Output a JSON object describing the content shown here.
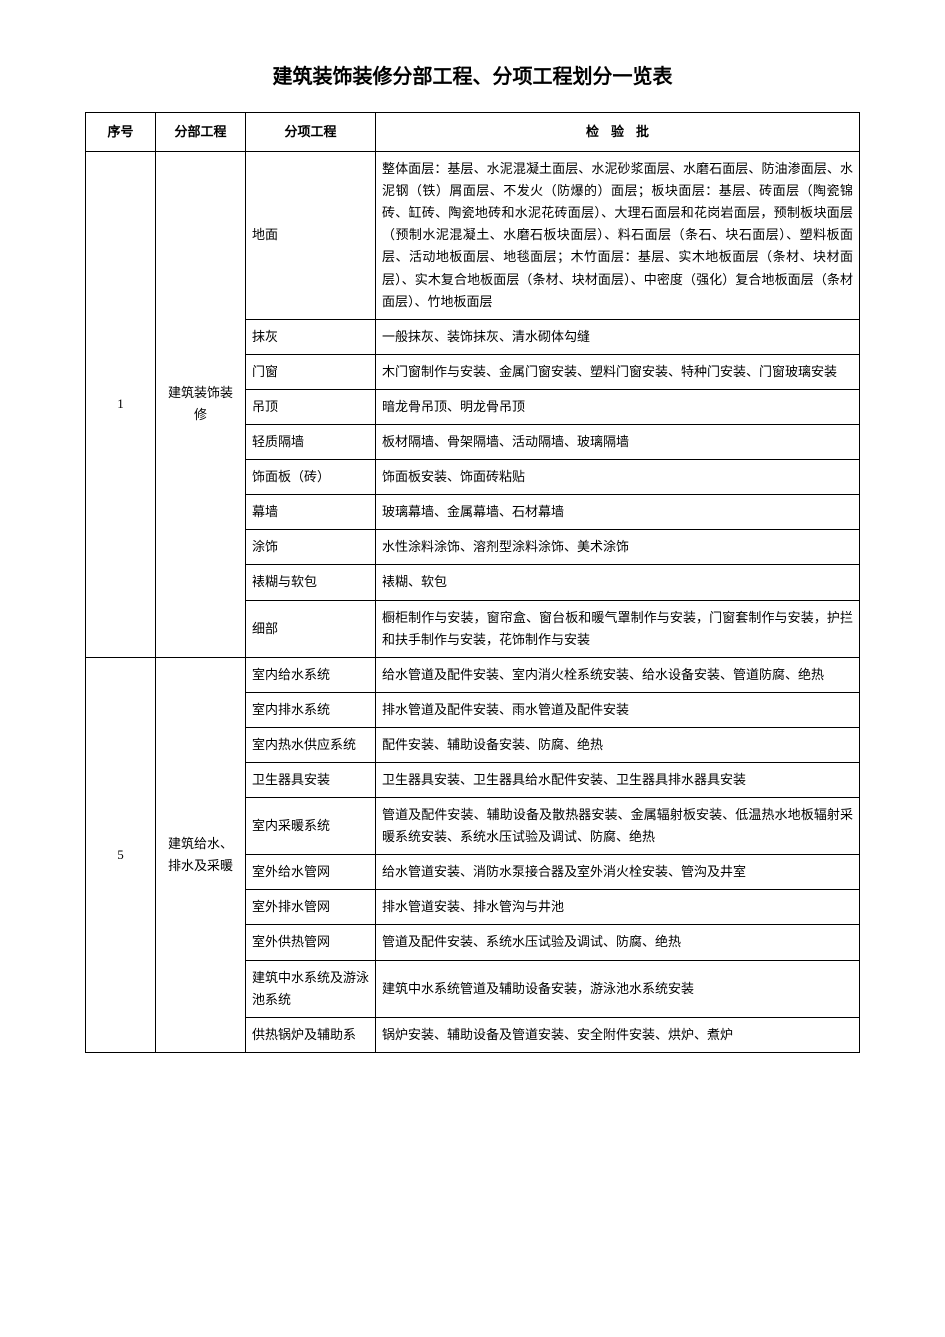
{
  "title": "建筑装饰装修分部工程、分项工程划分一览表",
  "headers": {
    "num": "序号",
    "section": "分部工程",
    "subsection": "分项工程",
    "inspection": "检验批"
  },
  "groups": [
    {
      "num": "1",
      "section": "建筑装饰装修",
      "rows": [
        {
          "sub": "地面",
          "insp": "整体面层：基层、水泥混凝土面层、水泥砂浆面层、水磨石面层、防油渗面层、水泥钢（铁）屑面层、不发火（防爆的）面层；板块面层：基层、砖面层（陶瓷锦砖、缸砖、陶瓷地砖和水泥花砖面层）、大理石面层和花岗岩面层，预制板块面层（预制水泥混凝土、水磨石板块面层）、料石面层（条石、块石面层）、塑料板面层、活动地板面层、地毯面层；木竹面层：基层、实木地板面层（条材、块材面层）、实木复合地板面层（条材、块材面层）、中密度（强化）复合地板面层（条材面层）、竹地板面层"
        },
        {
          "sub": "抹灰",
          "insp": "一般抹灰、装饰抹灰、清水砌体勾缝"
        },
        {
          "sub": "门窗",
          "insp": "木门窗制作与安装、金属门窗安装、塑料门窗安装、特种门安装、门窗玻璃安装"
        },
        {
          "sub": "吊顶",
          "insp": "暗龙骨吊顶、明龙骨吊顶"
        },
        {
          "sub": "轻质隔墙",
          "insp": "板材隔墙、骨架隔墙、活动隔墙、玻璃隔墙"
        },
        {
          "sub": "饰面板（砖）",
          "insp": "饰面板安装、饰面砖粘贴"
        },
        {
          "sub": "幕墙",
          "insp": "玻璃幕墙、金属幕墙、石材幕墙"
        },
        {
          "sub": "涂饰",
          "insp": "水性涂料涂饰、溶剂型涂料涂饰、美术涂饰"
        },
        {
          "sub": "裱糊与软包",
          "insp": "裱糊、软包"
        },
        {
          "sub": "细部",
          "insp": "橱柜制作与安装，窗帘盒、窗台板和暖气罩制作与安装，门窗套制作与安装，护拦和扶手制作与安装，花饰制作与安装"
        }
      ]
    },
    {
      "num": "5",
      "section": "建筑给水、排水及采暖",
      "rows": [
        {
          "sub": "室内给水系统",
          "insp": "给水管道及配件安装、室内消火栓系统安装、给水设备安装、管道防腐、绝热"
        },
        {
          "sub": "室内排水系统",
          "insp": "排水管道及配件安装、雨水管道及配件安装"
        },
        {
          "sub": "室内热水供应系统",
          "insp": "配件安装、辅助设备安装、防腐、绝热"
        },
        {
          "sub": "卫生器具安装",
          "insp": "卫生器具安装、卫生器具给水配件安装、卫生器具排水器具安装"
        },
        {
          "sub": "室内采暖系统",
          "insp": "管道及配件安装、辅助设备及散热器安装、金属辐射板安装、低温热水地板辐射采暖系统安装、系统水压试验及调试、防腐、绝热"
        },
        {
          "sub": "室外给水管网",
          "insp": "给水管道安装、消防水泵接合器及室外消火栓安装、管沟及井室"
        },
        {
          "sub": "室外排水管网",
          "insp": "排水管道安装、排水管沟与井池"
        },
        {
          "sub": "室外供热管网",
          "insp": "管道及配件安装、系统水压试验及调试、防腐、绝热"
        },
        {
          "sub": "建筑中水系统及游泳池系统",
          "insp": "建筑中水系统管道及辅助设备安装，游泳池水系统安装"
        },
        {
          "sub": "供热锅炉及辅助系",
          "insp": "锅炉安装、辅助设备及管道安装、安全附件安装、烘炉、煮炉"
        }
      ]
    }
  ]
}
